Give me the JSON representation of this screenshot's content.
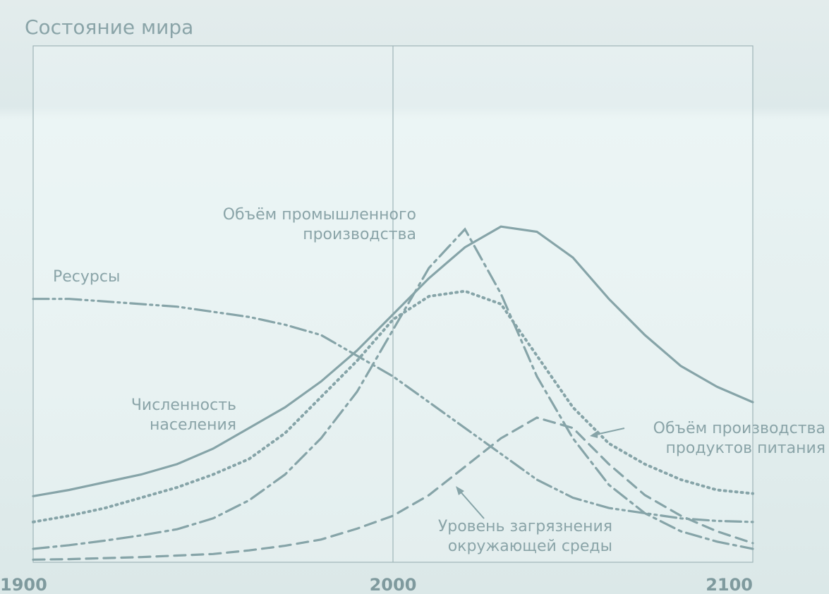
{
  "chart_data": {
    "type": "line",
    "title": "Состояние мира",
    "x": [
      1900,
      1910,
      1920,
      1930,
      1940,
      1950,
      1960,
      1970,
      1980,
      1990,
      2000,
      2010,
      2020,
      2030,
      2040,
      2050,
      2060,
      2070,
      2080,
      2090,
      2100
    ],
    "xlim": [
      1900,
      2100
    ],
    "xticks": [
      1900,
      2000,
      2100
    ],
    "ylim": [
      0,
      100
    ],
    "series": [
      {
        "name": "Численность\nнаселения",
        "color": "#86a4a8",
        "style": "solid",
        "values": [
          12.8,
          14,
          15.5,
          17,
          19,
          22,
          26,
          30,
          35,
          41,
          48,
          55,
          61,
          65,
          64,
          59,
          51,
          44,
          38,
          34,
          31
        ]
      },
      {
        "name": "Ресурсы",
        "color": "#86a4a8",
        "style": "dash-dot-dot",
        "values": [
          51,
          51,
          50.5,
          50,
          49.5,
          48.5,
          47.5,
          46,
          44,
          40,
          36,
          31,
          26,
          21,
          16,
          12.5,
          10.5,
          9.5,
          8.5,
          8,
          7.8
        ]
      },
      {
        "name": "Объём производства\nпродуктов питания",
        "color": "#86a4a8",
        "style": "dotted",
        "values": [
          7.8,
          9,
          10.5,
          12.5,
          14.5,
          17,
          20,
          25,
          32,
          39,
          47,
          51.5,
          52.5,
          50,
          40,
          30,
          23,
          19,
          16,
          14,
          13.3
        ]
      },
      {
        "name": "Объём промышленного\nпроизводства",
        "color": "#86a4a8",
        "style": "dash-dot",
        "values": [
          2.6,
          3.3,
          4.2,
          5.2,
          6.4,
          8.5,
          12,
          17,
          24,
          33,
          45,
          57,
          64.5,
          52,
          36,
          24,
          15,
          9.5,
          6,
          4,
          2.6
        ]
      },
      {
        "name": "Уровень загрязнения\nокружающей среды",
        "color": "#86a4a8",
        "style": "dashed",
        "values": [
          0.5,
          0.6,
          0.8,
          1,
          1.3,
          1.6,
          2.3,
          3.2,
          4.4,
          6.5,
          9,
          13,
          18.5,
          24,
          28,
          26,
          19,
          13,
          9,
          6,
          3.7
        ]
      }
    ]
  }
}
